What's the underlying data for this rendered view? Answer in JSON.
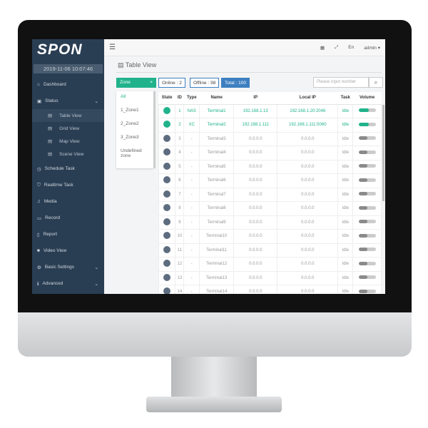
{
  "sidebar": {
    "logo": "SPON",
    "datetime": "2019-11-06 10:07:46",
    "items": [
      {
        "label": "Dashboard",
        "icon": "home-icon"
      },
      {
        "label": "Status",
        "icon": "status-icon",
        "expand": true
      },
      {
        "label": "Schedule Task",
        "icon": "clock-icon"
      },
      {
        "label": "Realtime Task",
        "icon": "shield-icon"
      },
      {
        "label": "Media",
        "icon": "music-icon"
      },
      {
        "label": "Record",
        "icon": "record-icon"
      },
      {
        "label": "Report",
        "icon": "report-icon"
      },
      {
        "label": "Video View",
        "icon": "video-icon"
      },
      {
        "label": "Basic Settings",
        "icon": "gear-icon",
        "expand": true
      },
      {
        "label": "Advanced",
        "icon": "info-icon",
        "expand": true
      }
    ],
    "status_sub": [
      {
        "label": "Table View",
        "active": true
      },
      {
        "label": "Grid View"
      },
      {
        "label": "Map View"
      },
      {
        "label": "Scene View"
      }
    ]
  },
  "topbar": {
    "lang": "En",
    "user": "admin ▾"
  },
  "page": {
    "title": "Table View",
    "zone_label": "Zone",
    "zone_clear": "×",
    "online": "Online : 2",
    "offline": "Offline : 98",
    "total": "Total : 100",
    "search_placeholder": "Please input number"
  },
  "zones": [
    "All",
    "1_Zone1",
    "2_Zone2",
    "3_Zone3",
    "Undefined zone"
  ],
  "table": {
    "headers": [
      "State",
      "ID",
      "Type",
      "Name",
      "IP",
      "Local IP",
      "Task",
      "Volume"
    ],
    "rows": [
      {
        "online": true,
        "id": "1",
        "type": "NAS",
        "name": "Terminal1",
        "ip": "192.168.1.13",
        "local": "192.168.1.20:2046",
        "task": "Idle",
        "volume": 0.6
      },
      {
        "online": true,
        "id": "2",
        "type": "XC",
        "name": "Terminal2",
        "ip": "192.168.1.111",
        "local": "192.168.1.111:5060",
        "task": "Idle",
        "volume": 0.6
      },
      {
        "online": false,
        "id": "3",
        "type": "-",
        "name": "Terminal3",
        "ip": "0.0.0.0",
        "local": "0.0.0.0",
        "task": "Idle",
        "volume": 0.5
      },
      {
        "online": false,
        "id": "4",
        "type": "-",
        "name": "Terminal4",
        "ip": "0.0.0.0",
        "local": "0.0.0.0",
        "task": "Idle",
        "volume": 0.5
      },
      {
        "online": false,
        "id": "5",
        "type": "-",
        "name": "Terminal5",
        "ip": "0.0.0.0",
        "local": "0.0.0.0",
        "task": "Idle",
        "volume": 0.5
      },
      {
        "online": false,
        "id": "6",
        "type": "-",
        "name": "Terminal6",
        "ip": "0.0.0.0",
        "local": "0.0.0.0",
        "task": "Idle",
        "volume": 0.5
      },
      {
        "online": false,
        "id": "7",
        "type": "-",
        "name": "Terminal7",
        "ip": "0.0.0.0",
        "local": "0.0.0.0",
        "task": "Idle",
        "volume": 0.5
      },
      {
        "online": false,
        "id": "8",
        "type": "-",
        "name": "Terminal8",
        "ip": "0.0.0.0",
        "local": "0.0.0.0",
        "task": "Idle",
        "volume": 0.5
      },
      {
        "online": false,
        "id": "9",
        "type": "-",
        "name": "Terminal9",
        "ip": "0.0.0.0",
        "local": "0.0.0.0",
        "task": "Idle",
        "volume": 0.5
      },
      {
        "online": false,
        "id": "10",
        "type": "-",
        "name": "Terminal10",
        "ip": "0.0.0.0",
        "local": "0.0.0.0",
        "task": "Idle",
        "volume": 0.5
      },
      {
        "online": false,
        "id": "11",
        "type": "-",
        "name": "Terminal11",
        "ip": "0.0.0.0",
        "local": "0.0.0.0",
        "task": "Idle",
        "volume": 0.5
      },
      {
        "online": false,
        "id": "12",
        "type": "-",
        "name": "Terminal12",
        "ip": "0.0.0.0",
        "local": "0.0.0.0",
        "task": "Idle",
        "volume": 0.5
      },
      {
        "online": false,
        "id": "13",
        "type": "-",
        "name": "Terminal13",
        "ip": "0.0.0.0",
        "local": "0.0.0.0",
        "task": "Idle",
        "volume": 0.5
      },
      {
        "online": false,
        "id": "14",
        "type": "-",
        "name": "Terminal14",
        "ip": "0.0.0.0",
        "local": "0.0.0.0",
        "task": "Idle",
        "volume": 0.5
      }
    ]
  },
  "colors": {
    "accent": "#20b38b",
    "sidebar": "#2a3e53",
    "total": "#3d7fc1"
  }
}
